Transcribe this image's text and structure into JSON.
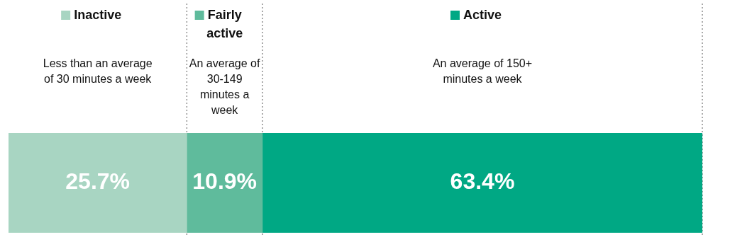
{
  "chart_data": {
    "type": "bar",
    "orientation": "horizontal",
    "stacked": true,
    "categories": [
      null
    ],
    "series": [
      {
        "name": "Inactive",
        "color": "#a8d5c2",
        "values": [
          25.7
        ],
        "value_labels": [
          "25.7%"
        ]
      },
      {
        "name": "Fairly active",
        "color": "#5fbb9c",
        "values": [
          10.9
        ],
        "value_labels": [
          "10.9%"
        ]
      },
      {
        "name": "Active",
        "color": "#00a884",
        "values": [
          63.4
        ],
        "value_labels": [
          "63.4%"
        ]
      }
    ],
    "annotations": [
      "Less than an average of 30 minutes a week",
      "An average of 30-149 minutes a week",
      "An average of 150+ minutes a week"
    ],
    "xlim": [
      0,
      100
    ],
    "tick_labels": false,
    "legend": "top",
    "ref_lines": [
      {
        "axis": "x",
        "value": 25.7,
        "line_style": "dotted",
        "color": "#555555"
      },
      {
        "axis": "x",
        "value": 36.6,
        "line_style": "dotted",
        "color": "#555555"
      },
      {
        "axis": "x",
        "value": 100,
        "line_style": "dotted",
        "color": "#555555"
      }
    ]
  }
}
